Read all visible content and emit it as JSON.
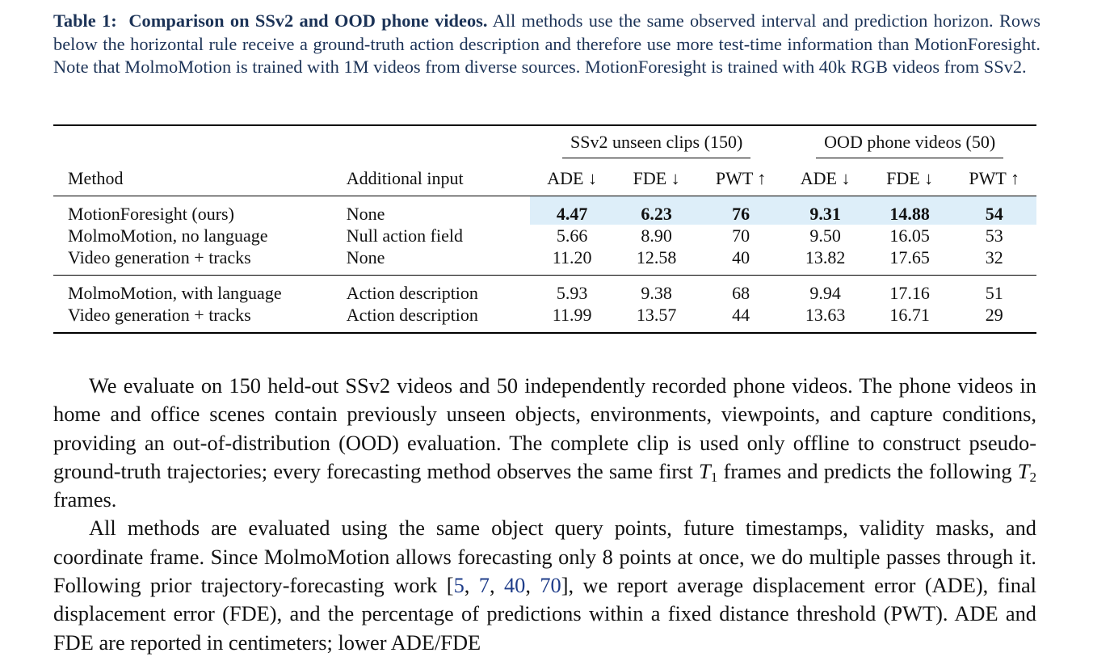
{
  "caption": {
    "label": "Table 1:",
    "title": "Comparison on SSv2 and OOD phone videos.",
    "text": "All methods use the same observed interval and prediction horizon. Rows below the horizontal rule receive a ground-truth action description and therefore use more test-time information than MotionForesight. Note that MolmoMotion is trained with 1M videos from diverse sources. MotionForesight is trained with 40k RGB videos from SSv2."
  },
  "table": {
    "group_headers": [
      "SSv2 unseen clips (150)",
      "OOD phone videos (50)"
    ],
    "columns": [
      "Method",
      "Additional input",
      "ADE ↓",
      "FDE ↓",
      "PWT ↑",
      "ADE ↓",
      "FDE ↓",
      "PWT ↑"
    ],
    "rows_main": [
      {
        "method": "MotionForesight (ours)",
        "input": "None",
        "values": [
          "4.47",
          "6.23",
          "76",
          "9.31",
          "14.88",
          "54"
        ],
        "highlight": true
      },
      {
        "method": "MolmoMotion, no language",
        "input": "Null action field",
        "values": [
          "5.66",
          "8.90",
          "70",
          "9.50",
          "16.05",
          "53"
        ]
      },
      {
        "method": "Video generation + tracks",
        "input": "None",
        "values": [
          "11.20",
          "12.58",
          "40",
          "13.82",
          "17.65",
          "32"
        ]
      }
    ],
    "rows_lang": [
      {
        "method": "MolmoMotion, with language",
        "input": "Action description",
        "values": [
          "5.93",
          "9.38",
          "68",
          "9.94",
          "17.16",
          "51"
        ]
      },
      {
        "method": "Video generation + tracks",
        "input": "Action description",
        "values": [
          "11.99",
          "13.57",
          "44",
          "13.63",
          "16.71",
          "29"
        ]
      }
    ]
  },
  "body": {
    "p1_a": "We evaluate on 150 held-out SSv2 videos and 50 independently recorded phone videos. The phone videos in home and office scenes contain previously unseen objects, environments, viewpoints, and capture conditions, providing an out-of-distribution (OOD) evaluation. The complete clip is used only offline to construct pseudo-ground-truth trajectories; every forecasting method observes the same first",
    "p1_var1": "T",
    "p1_sub1": "1",
    "p1_b": "frames and predicts the following",
    "p1_var2": "T",
    "p1_sub2": "2",
    "p1_c": "frames.",
    "p2_a": "All methods are evaluated using the same object query points, future timestamps, validity masks, and coordinate frame. Since MolmoMotion allows forecasting only 8 points at once, we do multiple passes through it. Following prior trajectory-forecasting work [",
    "citations": [
      "5",
      "7",
      "40",
      "70"
    ],
    "p2_b": "], we report average displacement error (ADE), final displacement error (FDE), and the percentage of predictions within a fixed distance threshold (PWT). ADE and FDE are reported in centimeters; lower ADE/FDE"
  }
}
